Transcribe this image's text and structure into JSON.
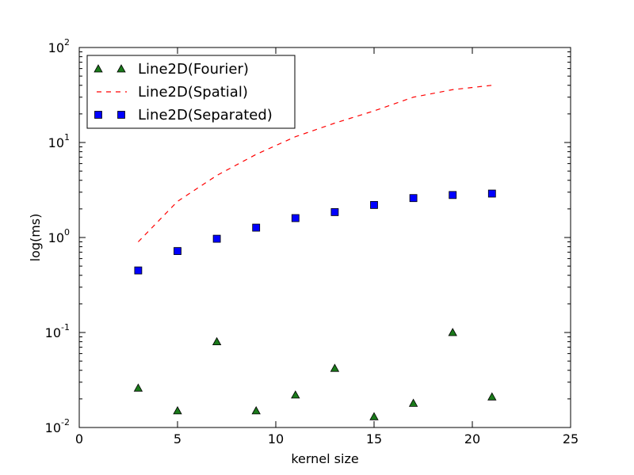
{
  "chart_data": {
    "type": "line",
    "xlabel": "kernel size",
    "ylabel": "log(ms)",
    "xlim": [
      0,
      25
    ],
    "ylim": [
      0.01,
      100
    ],
    "yscale": "log",
    "x_ticks": [
      "0",
      "5",
      "10",
      "15",
      "20",
      "25"
    ],
    "y_ticks": [
      {
        "base": "10",
        "exp": "-2"
      },
      {
        "base": "10",
        "exp": "-1"
      },
      {
        "base": "10",
        "exp": "0"
      },
      {
        "base": "10",
        "exp": "1"
      },
      {
        "base": "10",
        "exp": "2"
      }
    ],
    "grid": false,
    "legend_placement": "top-left",
    "series": [
      {
        "name": "Line2D(Fourier)",
        "style": "triangle-markers",
        "color": "#1a7a1a",
        "x": [
          3,
          5,
          7,
          9,
          11,
          13,
          15,
          17,
          19,
          21
        ],
        "y": [
          0.026,
          0.015,
          0.08,
          0.015,
          0.022,
          0.042,
          0.013,
          0.018,
          0.1,
          0.021
        ]
      },
      {
        "name": "Line2D(Spatial)",
        "style": "dashed-line",
        "color": "#ff0000",
        "x": [
          3,
          5,
          7,
          9,
          11,
          13,
          15,
          17,
          19,
          21
        ],
        "y": [
          0.9,
          2.4,
          4.5,
          7.5,
          11.5,
          16,
          21.5,
          30,
          36,
          40
        ]
      },
      {
        "name": "Line2D(Separated)",
        "style": "square-markers",
        "color": "#0000ff",
        "x": [
          3,
          5,
          7,
          9,
          11,
          13,
          15,
          17,
          19,
          21
        ],
        "y": [
          0.45,
          0.72,
          0.97,
          1.27,
          1.6,
          1.85,
          2.2,
          2.6,
          2.8,
          2.9
        ]
      }
    ]
  }
}
